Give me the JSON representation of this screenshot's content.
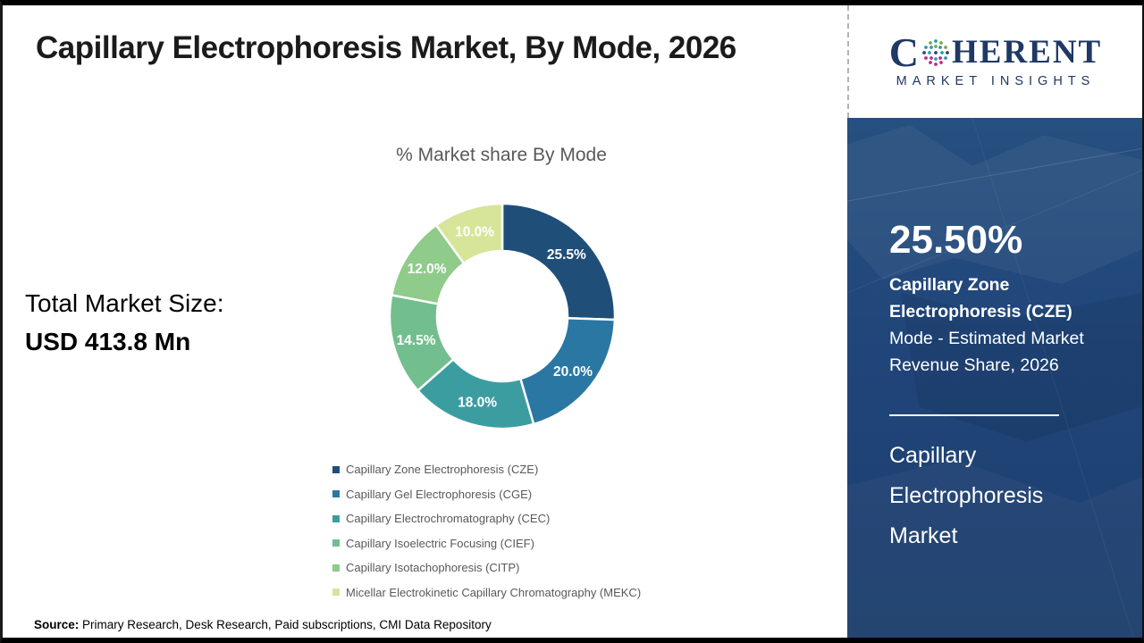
{
  "header": {
    "title": "Capillary Electrophoresis Market, By Mode, 2026"
  },
  "logo": {
    "prefix": "C",
    "suffix": "HERENT",
    "subtitle": "MARKET INSIGHTS",
    "brand_color": "#1F3864",
    "globe_icon": "dotted-globe"
  },
  "left_panel": {
    "total_label": "Total Market Size:",
    "total_value": "USD 413.8 Mn"
  },
  "chart_data": {
    "type": "pie",
    "donut": true,
    "title": "% Market share By Mode",
    "categories": [
      "Capillary Zone Electrophoresis (CZE)",
      "Capillary Gel Electrophoresis (CGE)",
      "Capillary Electrochromatography (CEC)",
      "Capillary Isoelectric Focusing (CIEF)",
      "Capillary Isotachophoresis (CITP)",
      "Micellar Electrokinetic Capillary Chromatography (MEKC)"
    ],
    "values": [
      25.5,
      20.0,
      18.0,
      14.5,
      12.0,
      10.0
    ],
    "labels": [
      "25.5%",
      "20.0%",
      "18.0%",
      "14.5%",
      "12.0%",
      "10.0%"
    ],
    "colors": [
      "#1F4E79",
      "#2A77A3",
      "#3C9DA1",
      "#73BE8E",
      "#8FCB8A",
      "#D7E59A"
    ],
    "start_angle_deg": 0,
    "direction": "clockwise",
    "legend_position": "bottom",
    "label_color": "#ffffff"
  },
  "sidebar": {
    "stat_value": "25.50%",
    "stat_bold": "Capillary Zone Electrophoresis (CZE)",
    "stat_rest": "Mode - Estimated Market Revenue Share, 2026",
    "market_name": "Capillary Electrophoresis Market",
    "bg_color": "#20457A"
  },
  "footer": {
    "source_label": "Source:",
    "source_text": "Primary Research, Desk Research, Paid subscriptions, CMI Data Repository"
  }
}
